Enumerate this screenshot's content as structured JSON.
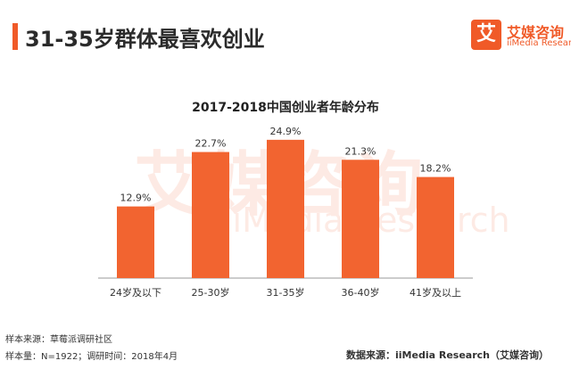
{
  "header": {
    "title": "31-35岁群体最喜欢创业"
  },
  "logo": {
    "badge": "艾",
    "name_cn": "艾媒咨询",
    "name_en": "iiMedia Research"
  },
  "watermark": {
    "cn": "艾媒咨询",
    "en": "iiMedia Research"
  },
  "colors": {
    "accent": "#f05a28",
    "bar": "#f26430",
    "axis": "#999999"
  },
  "chart_data": {
    "type": "bar",
    "title": "2017-2018中国创业者年龄分布",
    "categories": [
      "24岁及以下",
      "25-30岁",
      "31-35岁",
      "36-40岁",
      "41岁及以上"
    ],
    "values": [
      12.9,
      22.7,
      24.9,
      21.3,
      18.2
    ],
    "value_labels": [
      "12.9%",
      "22.7%",
      "24.9%",
      "21.3%",
      "18.2%"
    ],
    "xlabel": "",
    "ylabel": "",
    "ylim": [
      0,
      26
    ],
    "grid": false,
    "legend": "none"
  },
  "footer": {
    "sample_source": "样本来源：草莓派调研社区",
    "sample_info": "样本量：N=1922；调研时间：2018年4月",
    "data_source": "数据来源：iiMedia Research（艾媒咨询）"
  }
}
